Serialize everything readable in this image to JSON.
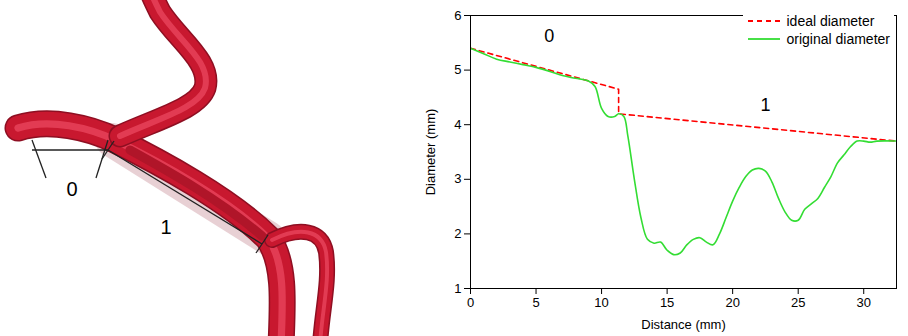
{
  "diagram": {
    "segments": [
      {
        "label": "0"
      },
      {
        "label": "1"
      }
    ]
  },
  "chart_data": {
    "type": "line",
    "xlabel": "Distance (mm)",
    "ylabel": "Diameter (mm)",
    "xlim": [
      0,
      32.5
    ],
    "ylim": [
      1,
      6
    ],
    "xticks": [
      0,
      5,
      10,
      15,
      20,
      25,
      30
    ],
    "yticks": [
      1,
      2,
      3,
      4,
      5,
      6
    ],
    "legend": "top-right",
    "series": [
      {
        "name": "ideal diameter",
        "color": "#ff0000",
        "line_style": "dashed",
        "x": [
          0,
          11.3,
          11.3,
          32.5
        ],
        "values": [
          5.4,
          4.65,
          4.2,
          3.7
        ]
      },
      {
        "name": "original diameter",
        "color": "#33dd33",
        "line_style": "solid",
        "x": [
          0,
          1,
          2,
          3,
          4,
          5,
          6,
          7,
          8,
          9,
          9.5,
          10,
          10.5,
          11,
          11.3,
          11.7,
          12,
          12.5,
          13,
          13.5,
          14,
          14.5,
          15,
          15.5,
          16,
          16.5,
          17,
          17.5,
          18,
          18.5,
          19,
          19.5,
          20,
          20.5,
          21,
          21.5,
          22,
          22.5,
          23,
          23.5,
          24,
          24.5,
          25,
          25.5,
          26,
          26.5,
          27,
          27.5,
          28,
          28.5,
          29,
          29.5,
          30,
          30.5,
          31,
          32.5
        ],
        "values": [
          5.4,
          5.3,
          5.2,
          5.15,
          5.1,
          5.05,
          4.98,
          4.9,
          4.85,
          4.8,
          4.7,
          4.3,
          4.15,
          4.15,
          4.2,
          4.15,
          3.8,
          3.0,
          2.3,
          1.9,
          1.83,
          1.85,
          1.7,
          1.62,
          1.65,
          1.8,
          1.9,
          1.93,
          1.85,
          1.8,
          2.0,
          2.3,
          2.6,
          2.85,
          3.05,
          3.17,
          3.2,
          3.15,
          2.95,
          2.65,
          2.4,
          2.25,
          2.25,
          2.45,
          2.55,
          2.65,
          2.85,
          3.05,
          3.3,
          3.45,
          3.6,
          3.7,
          3.7,
          3.68,
          3.7,
          3.7
        ]
      }
    ],
    "annotations": [
      {
        "text": "0",
        "x": 6,
        "y": 5.62
      },
      {
        "text": "1",
        "x": 22.5,
        "y": 4.35
      }
    ]
  }
}
